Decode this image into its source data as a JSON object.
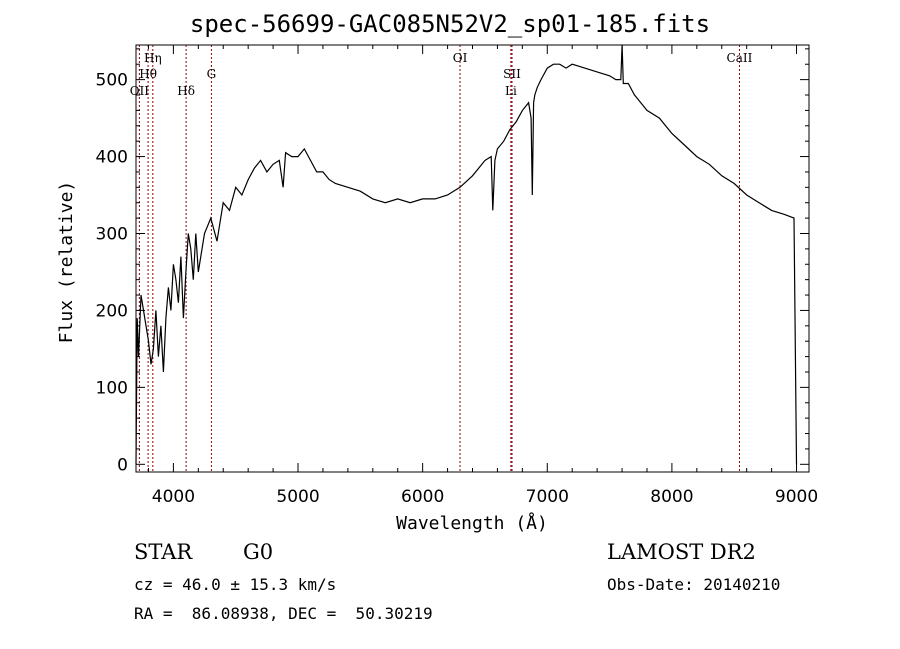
{
  "chart_data": {
    "type": "line",
    "title": "spec-56699-GAC085N52V2_sp01-185.fits",
    "xlabel": "Wavelength (Å)",
    "ylabel": "Flux (relative)",
    "xlim": [
      3700,
      9100
    ],
    "ylim": [
      -10,
      545
    ],
    "x_ticks": [
      4000,
      5000,
      6000,
      7000,
      8000,
      9000
    ],
    "y_ticks": [
      0,
      100,
      200,
      300,
      400,
      500
    ],
    "grid": false,
    "line_color": "#000000",
    "marker_color": "#8b0000",
    "lines": [
      {
        "label": "Hη",
        "wavelength": 3835
      },
      {
        "label": "Hθ",
        "wavelength": 3797
      },
      {
        "label": "OII",
        "wavelength": 3727
      },
      {
        "label": "Hδ",
        "wavelength": 4102
      },
      {
        "label": "G",
        "wavelength": 4305
      },
      {
        "label": "OI",
        "wavelength": 6300
      },
      {
        "label": "SII",
        "wavelength": 6717
      },
      {
        "label": "Li",
        "wavelength": 6708
      },
      {
        "label": "CaII",
        "wavelength": 8542
      }
    ],
    "series": [
      {
        "x": [
          3700,
          3710,
          3720,
          3740,
          3760,
          3780,
          3800,
          3820,
          3840,
          3860,
          3880,
          3900,
          3920,
          3940,
          3960,
          3980,
          4000,
          4020,
          4040,
          4060,
          4080,
          4100,
          4120,
          4140,
          4160,
          4180,
          4200,
          4250,
          4300,
          4350,
          4400,
          4450,
          4500,
          4550,
          4600,
          4650,
          4700,
          4750,
          4800,
          4850,
          4880,
          4900,
          4950,
          5000,
          5050,
          5100,
          5150,
          5200,
          5250,
          5300,
          5400,
          5500,
          5600,
          5700,
          5800,
          5900,
          6000,
          6100,
          6200,
          6300,
          6400,
          6500,
          6550,
          6563,
          6580,
          6600,
          6650,
          6700,
          6750,
          6800,
          6850,
          6870,
          6880,
          6890,
          6900,
          6920,
          6950,
          7000,
          7050,
          7100,
          7150,
          7200,
          7300,
          7400,
          7500,
          7550,
          7590,
          7600,
          7610,
          7650,
          7700,
          7750,
          7800,
          7900,
          8000,
          8100,
          8200,
          8300,
          8400,
          8500,
          8600,
          8700,
          8800,
          8900,
          8980,
          9000
        ],
        "y": [
          0,
          190,
          140,
          220,
          200,
          180,
          160,
          130,
          150,
          200,
          140,
          180,
          120,
          190,
          230,
          200,
          260,
          240,
          210,
          270,
          190,
          250,
          300,
          280,
          240,
          300,
          250,
          300,
          320,
          290,
          340,
          330,
          360,
          350,
          370,
          385,
          395,
          380,
          390,
          395,
          360,
          405,
          400,
          400,
          410,
          395,
          380,
          380,
          370,
          365,
          360,
          355,
          345,
          340,
          345,
          340,
          345,
          345,
          350,
          360,
          375,
          395,
          400,
          330,
          395,
          410,
          420,
          435,
          445,
          460,
          470,
          450,
          350,
          470,
          480,
          490,
          500,
          515,
          520,
          520,
          515,
          520,
          515,
          510,
          505,
          500,
          500,
          545,
          495,
          495,
          480,
          470,
          460,
          450,
          430,
          415,
          400,
          390,
          375,
          365,
          350,
          340,
          330,
          325,
          320,
          0
        ]
      }
    ]
  },
  "info": {
    "class": "STAR",
    "subclass": "G0",
    "survey": "LAMOST DR2",
    "cz": "cz = 46.0 ± 15.3 km/s",
    "obs_date": "Obs-Date: 20140210",
    "coords": "RA =  86.08938, DEC =  50.30219"
  }
}
